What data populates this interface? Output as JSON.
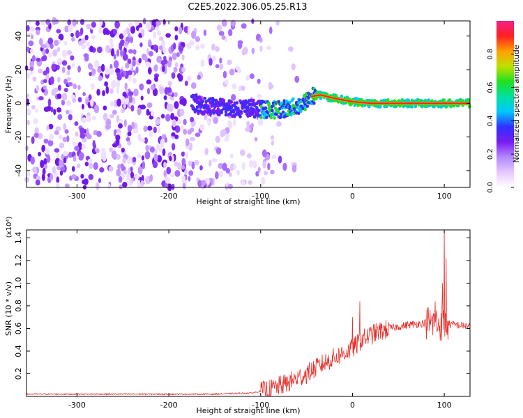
{
  "title": "C2E5.2022.306.05.25.R13",
  "chart_data": [
    {
      "type": "heatmap",
      "name": "spectrogram",
      "xlabel": "Height of straight line (km)",
      "ylabel": "Frequency (Hz)",
      "xlim": [
        -355,
        128
      ],
      "ylim": [
        -50,
        49
      ],
      "xticks": [
        -300,
        -200,
        -100,
        0,
        100
      ],
      "yticks": [
        -40,
        -20,
        0,
        20,
        40
      ],
      "colorbar": {
        "label": "Normalized spectral amplitude",
        "range": [
          0.0,
          1.0
        ],
        "ticks": [
          "0.0",
          "0.2",
          "0.4",
          "0.6",
          "0.8"
        ],
        "tick_values": [
          0.0,
          0.2,
          0.4,
          0.6,
          0.8
        ],
        "colors": [
          "#ffffff",
          "#e6c8ff",
          "#b388ff",
          "#7a1cf0",
          "#3030ff",
          "#00c8ff",
          "#00e0a0",
          "#20e020",
          "#c0e000",
          "#ffa000",
          "#ff2020",
          "#f0208a"
        ]
      },
      "signal_track": [
        {
          "x": -170,
          "y": -1
        },
        {
          "x": -150,
          "y": -2
        },
        {
          "x": -130,
          "y": -3
        },
        {
          "x": -110,
          "y": -3
        },
        {
          "x": -90,
          "y": -4
        },
        {
          "x": -70,
          "y": -3
        },
        {
          "x": -55,
          "y": -1
        },
        {
          "x": -45,
          "y": 4
        },
        {
          "x": -35,
          "y": 5
        },
        {
          "x": -20,
          "y": 3
        },
        {
          "x": 0,
          "y": 1
        },
        {
          "x": 20,
          "y": 0
        },
        {
          "x": 60,
          "y": 0
        },
        {
          "x": 100,
          "y": 0
        },
        {
          "x": 128,
          "y": 0
        }
      ]
    },
    {
      "type": "line",
      "name": "snr",
      "xlabel": "Height of straight line (km)",
      "ylabel": "SNR (10 * v/v)",
      "multiplier": "(x10⁴)",
      "xlim": [
        -355,
        128
      ],
      "ylim": [
        0,
        1.47
      ],
      "xticks": [
        -300,
        -200,
        -100,
        0,
        100
      ],
      "yticks": [
        0.2,
        0.4,
        0.6,
        0.8,
        1.0,
        1.2,
        1.4
      ],
      "ytick_labels": [
        "0.2",
        "0.4",
        "0.6",
        "0.8",
        "1.0",
        "1.2",
        "1.4"
      ],
      "color": "#e8302a",
      "envelope": [
        {
          "x": -355,
          "y": 0.02
        },
        {
          "x": -150,
          "y": 0.02
        },
        {
          "x": -110,
          "y": 0.03
        },
        {
          "x": -90,
          "y": 0.06
        },
        {
          "x": -70,
          "y": 0.12
        },
        {
          "x": -50,
          "y": 0.2
        },
        {
          "x": -30,
          "y": 0.3
        },
        {
          "x": -10,
          "y": 0.38
        },
        {
          "x": 0,
          "y": 0.42
        },
        {
          "x": 10,
          "y": 0.5
        },
        {
          "x": 25,
          "y": 0.56
        },
        {
          "x": 40,
          "y": 0.6
        },
        {
          "x": 60,
          "y": 0.63
        },
        {
          "x": 80,
          "y": 0.65
        },
        {
          "x": 100,
          "y": 0.64
        },
        {
          "x": 128,
          "y": 0.62
        }
      ],
      "peaks": [
        {
          "x": 100,
          "y": 1.47
        },
        {
          "x": 102,
          "y": 1.22
        },
        {
          "x": 98,
          "y": 1.0
        },
        {
          "x": 90,
          "y": 0.84
        },
        {
          "x": 8,
          "y": 0.84
        },
        {
          "x": 0,
          "y": 0.7
        }
      ]
    }
  ]
}
